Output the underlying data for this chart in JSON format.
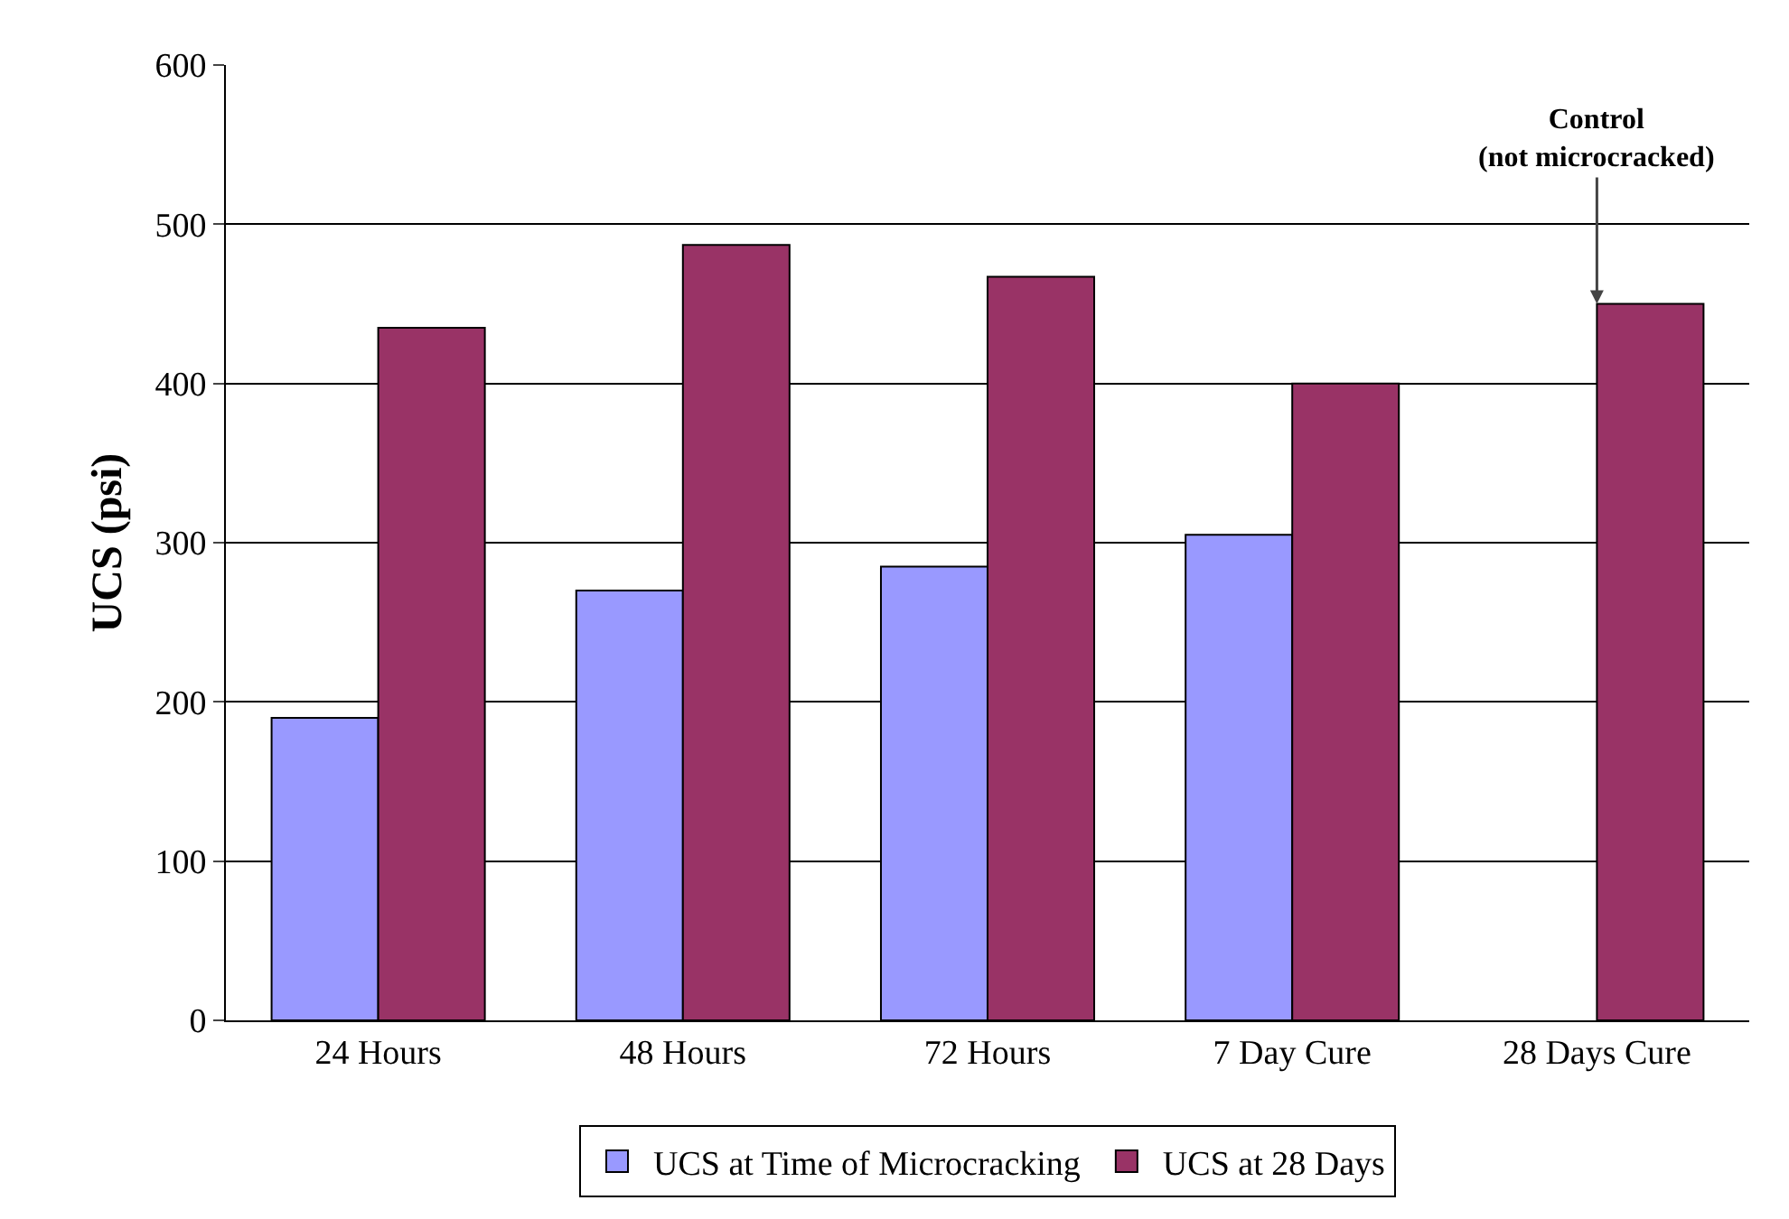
{
  "chart_data": {
    "type": "bar",
    "ylabel": "UCS (psi)",
    "categories": [
      "24 Hours",
      "48 Hours",
      "72 Hours",
      "7 Day Cure",
      "28 Days Cure"
    ],
    "series": [
      {
        "name": "UCS at Time of Microcracking",
        "color": "#9999ff",
        "values": [
          190,
          270,
          285,
          305,
          null
        ]
      },
      {
        "name": "UCS at 28 Days",
        "color": "#993366",
        "values": [
          435,
          487,
          467,
          400,
          450
        ]
      }
    ],
    "ylim": [
      0,
      600
    ],
    "yticks": [
      0,
      100,
      200,
      300,
      400,
      500,
      600
    ],
    "grid": "y",
    "legend": "bottom",
    "annotations": [
      {
        "text": "Control\n(not microcracked)",
        "x": "28 Days Cure",
        "y": 450
      }
    ]
  }
}
